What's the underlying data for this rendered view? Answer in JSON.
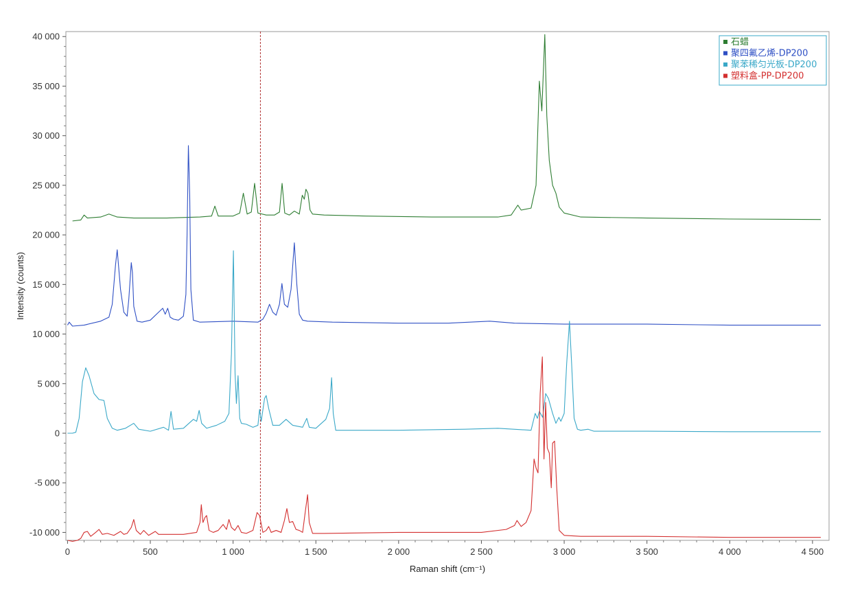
{
  "chart_data": {
    "type": "line",
    "title": "",
    "xlabel": "Raman shift (cm⁻¹)",
    "ylabel": "Intensity (counts)",
    "xlim": [
      -10,
      4600
    ],
    "ylim": [
      -10800,
      40500
    ],
    "x_ticks": [
      0,
      500,
      1000,
      1500,
      2000,
      2500,
      3000,
      3500,
      4000,
      4500
    ],
    "x_tick_labels": [
      "0",
      "500",
      "1 000",
      "1 500",
      "2 000",
      "2 500",
      "3 000",
      "3 500",
      "4 000",
      "4 500"
    ],
    "y_ticks": [
      -10000,
      -5000,
      0,
      5000,
      10000,
      15000,
      20000,
      25000,
      30000,
      35000,
      40000
    ],
    "y_tick_labels": [
      "-10 000",
      "-5 000",
      "0",
      "5 000",
      "10 000",
      "15 000",
      "20 000",
      "25 000",
      "30 000",
      "35 000",
      "40 000"
    ],
    "grid": false,
    "legend_position": "top-right",
    "cursor_x": 1165,
    "series": [
      {
        "name": "石蜡",
        "color": "#2e7d32",
        "x": [
          30,
          80,
          100,
          120,
          200,
          250,
          300,
          400,
          600,
          800,
          870,
          890,
          910,
          1000,
          1040,
          1062,
          1085,
          1110,
          1130,
          1150,
          1200,
          1250,
          1280,
          1296,
          1312,
          1340,
          1370,
          1400,
          1418,
          1430,
          1440,
          1452,
          1465,
          1480,
          1550,
          1800,
          2200,
          2600,
          2680,
          2700,
          2720,
          2740,
          2800,
          2830,
          2850,
          2865,
          2883,
          2895,
          2910,
          2930,
          2950,
          2970,
          3000,
          3100,
          3500,
          4000,
          4550
        ],
        "y": [
          21400,
          21500,
          22000,
          21700,
          21800,
          22100,
          21800,
          21700,
          21700,
          21800,
          21900,
          22900,
          21900,
          21900,
          22200,
          24200,
          22100,
          22300,
          25200,
          22200,
          22000,
          22000,
          22300,
          25200,
          22200,
          22000,
          22400,
          22100,
          24000,
          23600,
          24600,
          24200,
          22500,
          22100,
          22000,
          21900,
          21800,
          21800,
          22000,
          22500,
          23000,
          22500,
          22700,
          25000,
          35500,
          32500,
          40200,
          32000,
          27500,
          25000,
          24200,
          22800,
          22200,
          21800,
          21700,
          21600,
          21550
        ]
      },
      {
        "name": "聚四氟乙烯-DP200",
        "color": "#2e4fc4",
        "x": [
          0,
          10,
          30,
          100,
          200,
          250,
          270,
          290,
          300,
          320,
          340,
          360,
          370,
          385,
          392,
          400,
          420,
          450,
          500,
          550,
          575,
          590,
          605,
          620,
          640,
          670,
          700,
          715,
          722,
          730,
          738,
          745,
          760,
          800,
          1000,
          1150,
          1180,
          1200,
          1220,
          1240,
          1260,
          1280,
          1295,
          1310,
          1330,
          1350,
          1370,
          1385,
          1400,
          1420,
          1450,
          1600,
          2000,
          2300,
          2550,
          2700,
          3000,
          3500,
          4000,
          4550
        ],
        "y": [
          10900,
          11200,
          10800,
          10900,
          11300,
          11700,
          13000,
          17000,
          18500,
          14500,
          12200,
          11800,
          13500,
          17200,
          16200,
          12800,
          11300,
          11200,
          11400,
          12200,
          12600,
          12000,
          12600,
          11700,
          11500,
          11400,
          11800,
          14000,
          20000,
          29000,
          24000,
          14500,
          11400,
          11200,
          11300,
          11200,
          11500,
          12100,
          13000,
          12200,
          11900,
          13000,
          15100,
          13000,
          12700,
          14500,
          19200,
          15000,
          12000,
          11400,
          11300,
          11200,
          11100,
          11100,
          11300,
          11100,
          11000,
          11000,
          10900,
          10900
        ]
      },
      {
        "name": "聚苯稀匀光板-DP200",
        "color": "#3aa8c8",
        "x": [
          0,
          30,
          50,
          70,
          90,
          110,
          130,
          160,
          190,
          220,
          240,
          270,
          300,
          350,
          400,
          430,
          500,
          580,
          610,
          625,
          640,
          700,
          760,
          780,
          795,
          810,
          840,
          900,
          950,
          975,
          990,
          1002,
          1012,
          1020,
          1030,
          1040,
          1050,
          1080,
          1120,
          1150,
          1160,
          1170,
          1190,
          1200,
          1215,
          1240,
          1280,
          1320,
          1360,
          1420,
          1445,
          1460,
          1500,
          1560,
          1583,
          1595,
          1605,
          1620,
          1700,
          2000,
          2400,
          2600,
          2800,
          2825,
          2838,
          2850,
          2870,
          2888,
          2905,
          2930,
          2950,
          2968,
          2980,
          3000,
          3015,
          3032,
          3045,
          3060,
          3080,
          3100,
          3145,
          3180,
          3200,
          3500,
          4000,
          4300,
          4550
        ],
        "y": [
          0,
          0,
          100,
          1500,
          5200,
          6600,
          5800,
          4000,
          3400,
          3300,
          1500,
          500,
          300,
          500,
          1000,
          400,
          200,
          600,
          300,
          2200,
          400,
          500,
          1400,
          1200,
          2300,
          1000,
          500,
          800,
          1200,
          2000,
          8000,
          18400,
          6000,
          3000,
          5800,
          1500,
          1000,
          900,
          600,
          800,
          2400,
          1200,
          3500,
          3800,
          2500,
          800,
          800,
          1400,
          800,
          600,
          1500,
          600,
          500,
          1400,
          2500,
          5600,
          2000,
          300,
          300,
          300,
          400,
          500,
          300,
          2000,
          1500,
          2200,
          1600,
          4000,
          3500,
          2000,
          1000,
          1600,
          1200,
          2000,
          7000,
          11300,
          7000,
          1500,
          400,
          300,
          400,
          200,
          200,
          200,
          150,
          150,
          150
        ]
      },
      {
        "name": "塑料盒-PP-DP200",
        "color": "#d32f2f",
        "x": [
          0,
          30,
          60,
          80,
          100,
          120,
          140,
          170,
          190,
          210,
          240,
          280,
          320,
          340,
          360,
          385,
          400,
          415,
          440,
          460,
          490,
          510,
          530,
          550,
          600,
          700,
          780,
          800,
          808,
          818,
          830,
          840,
          855,
          880,
          910,
          940,
          960,
          975,
          990,
          1010,
          1030,
          1050,
          1080,
          1120,
          1145,
          1160,
          1180,
          1200,
          1215,
          1230,
          1260,
          1290,
          1310,
          1325,
          1340,
          1360,
          1380,
          1400,
          1420,
          1437,
          1450,
          1460,
          1480,
          1550,
          2000,
          2500,
          2650,
          2700,
          2715,
          2740,
          2770,
          2800,
          2818,
          2830,
          2842,
          2855,
          2868,
          2878,
          2888,
          2898,
          2910,
          2922,
          2930,
          2942,
          2955,
          2970,
          3000,
          3100,
          3500,
          4000,
          4550
        ],
        "y": [
          -10800,
          -10900,
          -10800,
          -10600,
          -10000,
          -9900,
          -10400,
          -10000,
          -9700,
          -10200,
          -10100,
          -10300,
          -9900,
          -10200,
          -10100,
          -9500,
          -8700,
          -9800,
          -10200,
          -9800,
          -10300,
          -10100,
          -9900,
          -10200,
          -10200,
          -10200,
          -10000,
          -9000,
          -7200,
          -9000,
          -8500,
          -8300,
          -9800,
          -10000,
          -9800,
          -9200,
          -9700,
          -8700,
          -9500,
          -9800,
          -9300,
          -10000,
          -10100,
          -9800,
          -8000,
          -8300,
          -10000,
          -9800,
          -9400,
          -10000,
          -9800,
          -10000,
          -8800,
          -7600,
          -9000,
          -8900,
          -9700,
          -9800,
          -10000,
          -7800,
          -6200,
          -9000,
          -10100,
          -10100,
          -10000,
          -10000,
          -9700,
          -9300,
          -8800,
          -9400,
          -9000,
          -7800,
          -2600,
          -3500,
          -4000,
          4000,
          7700,
          -2600,
          3100,
          -1500,
          -2000,
          -5500,
          -1000,
          -800,
          -5500,
          -9800,
          -10300,
          -10400,
          -10400,
          -10500,
          -10500
        ]
      }
    ]
  }
}
